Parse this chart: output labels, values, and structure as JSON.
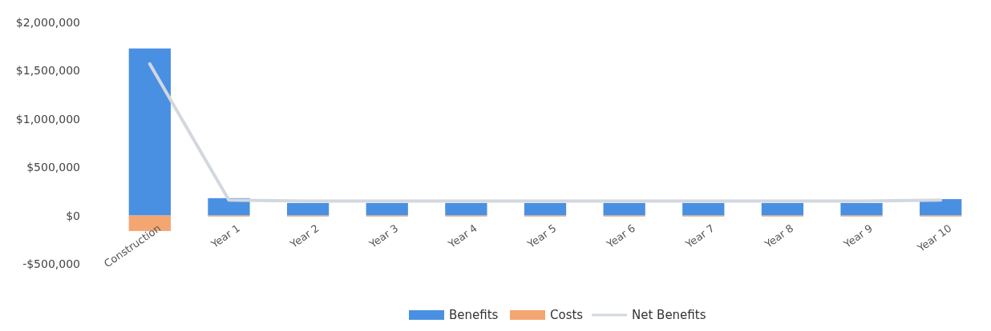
{
  "chart_data": {
    "type": "bar",
    "stacked": true,
    "categories": [
      "Construction",
      "Year 1",
      "Year 2",
      "Year 3",
      "Year 4",
      "Year 5",
      "Year 6",
      "Year 7",
      "Year 8",
      "Year 9",
      "Year 10"
    ],
    "ylim": [
      -500000,
      2000000
    ],
    "yticks": [
      {
        "value": -500000,
        "label": "-$500,000"
      },
      {
        "value": 0,
        "label": "$0"
      },
      {
        "value": 500000,
        "label": "$500,000"
      },
      {
        "value": 1000000,
        "label": "$1,000,000"
      },
      {
        "value": 1500000,
        "label": "$1,500,000"
      },
      {
        "value": 2000000,
        "label": "$2,000,000"
      }
    ],
    "grid": false,
    "legend": "bottom",
    "series": [
      {
        "name": "Benefits",
        "color": "#4a90e2",
        "values": [
          1730000,
          180000,
          130000,
          130000,
          130000,
          130000,
          130000,
          130000,
          130000,
          130000,
          170000
        ]
      },
      {
        "name": "Costs",
        "color": "#f4a672",
        "values": [
          -160000,
          -10000,
          -10000,
          -10000,
          -10000,
          -10000,
          -10000,
          -10000,
          -10000,
          -10000,
          -10000
        ]
      },
      {
        "name": "Net Benefits",
        "type": "line",
        "color": "#d3d7de",
        "marker": "none",
        "values": [
          1570000,
          160000,
          150000,
          150000,
          150000,
          150000,
          150000,
          150000,
          150000,
          150000,
          160000
        ]
      }
    ]
  }
}
